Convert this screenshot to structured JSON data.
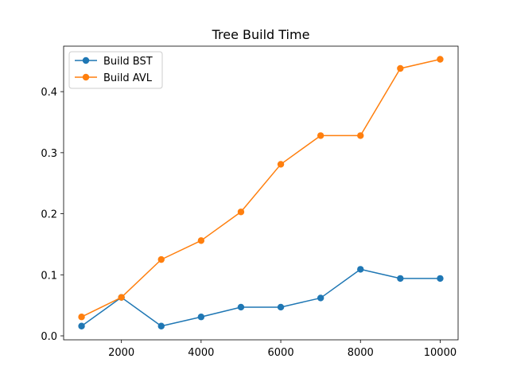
{
  "chart_data": {
    "type": "line",
    "title": "Tree Build Time",
    "xlabel": "",
    "ylabel": "",
    "x": [
      1000,
      2000,
      3000,
      4000,
      5000,
      6000,
      7000,
      8000,
      9000,
      10000
    ],
    "xlim": [
      550,
      10450
    ],
    "ylim": [
      -0.0065,
      0.4745
    ],
    "xticks": [
      2000,
      4000,
      6000,
      8000,
      10000
    ],
    "yticks": [
      0.0,
      0.1,
      0.2,
      0.3,
      0.4
    ],
    "xtick_labels": [
      "2000",
      "4000",
      "6000",
      "8000",
      "10000"
    ],
    "ytick_labels": [
      "0.0",
      "0.1",
      "0.2",
      "0.3",
      "0.4"
    ],
    "grid": false,
    "legend_position": "upper-left",
    "series": [
      {
        "name": "Build BST",
        "color": "#1f77b4",
        "marker": "circle",
        "values": [
          0.016,
          0.063,
          0.016,
          0.031,
          0.047,
          0.047,
          0.062,
          0.109,
          0.094,
          0.094
        ]
      },
      {
        "name": "Build AVL",
        "color": "#ff7f0e",
        "marker": "circle",
        "values": [
          0.031,
          0.063,
          0.125,
          0.156,
          0.203,
          0.281,
          0.328,
          0.328,
          0.438,
          0.453
        ]
      }
    ]
  }
}
